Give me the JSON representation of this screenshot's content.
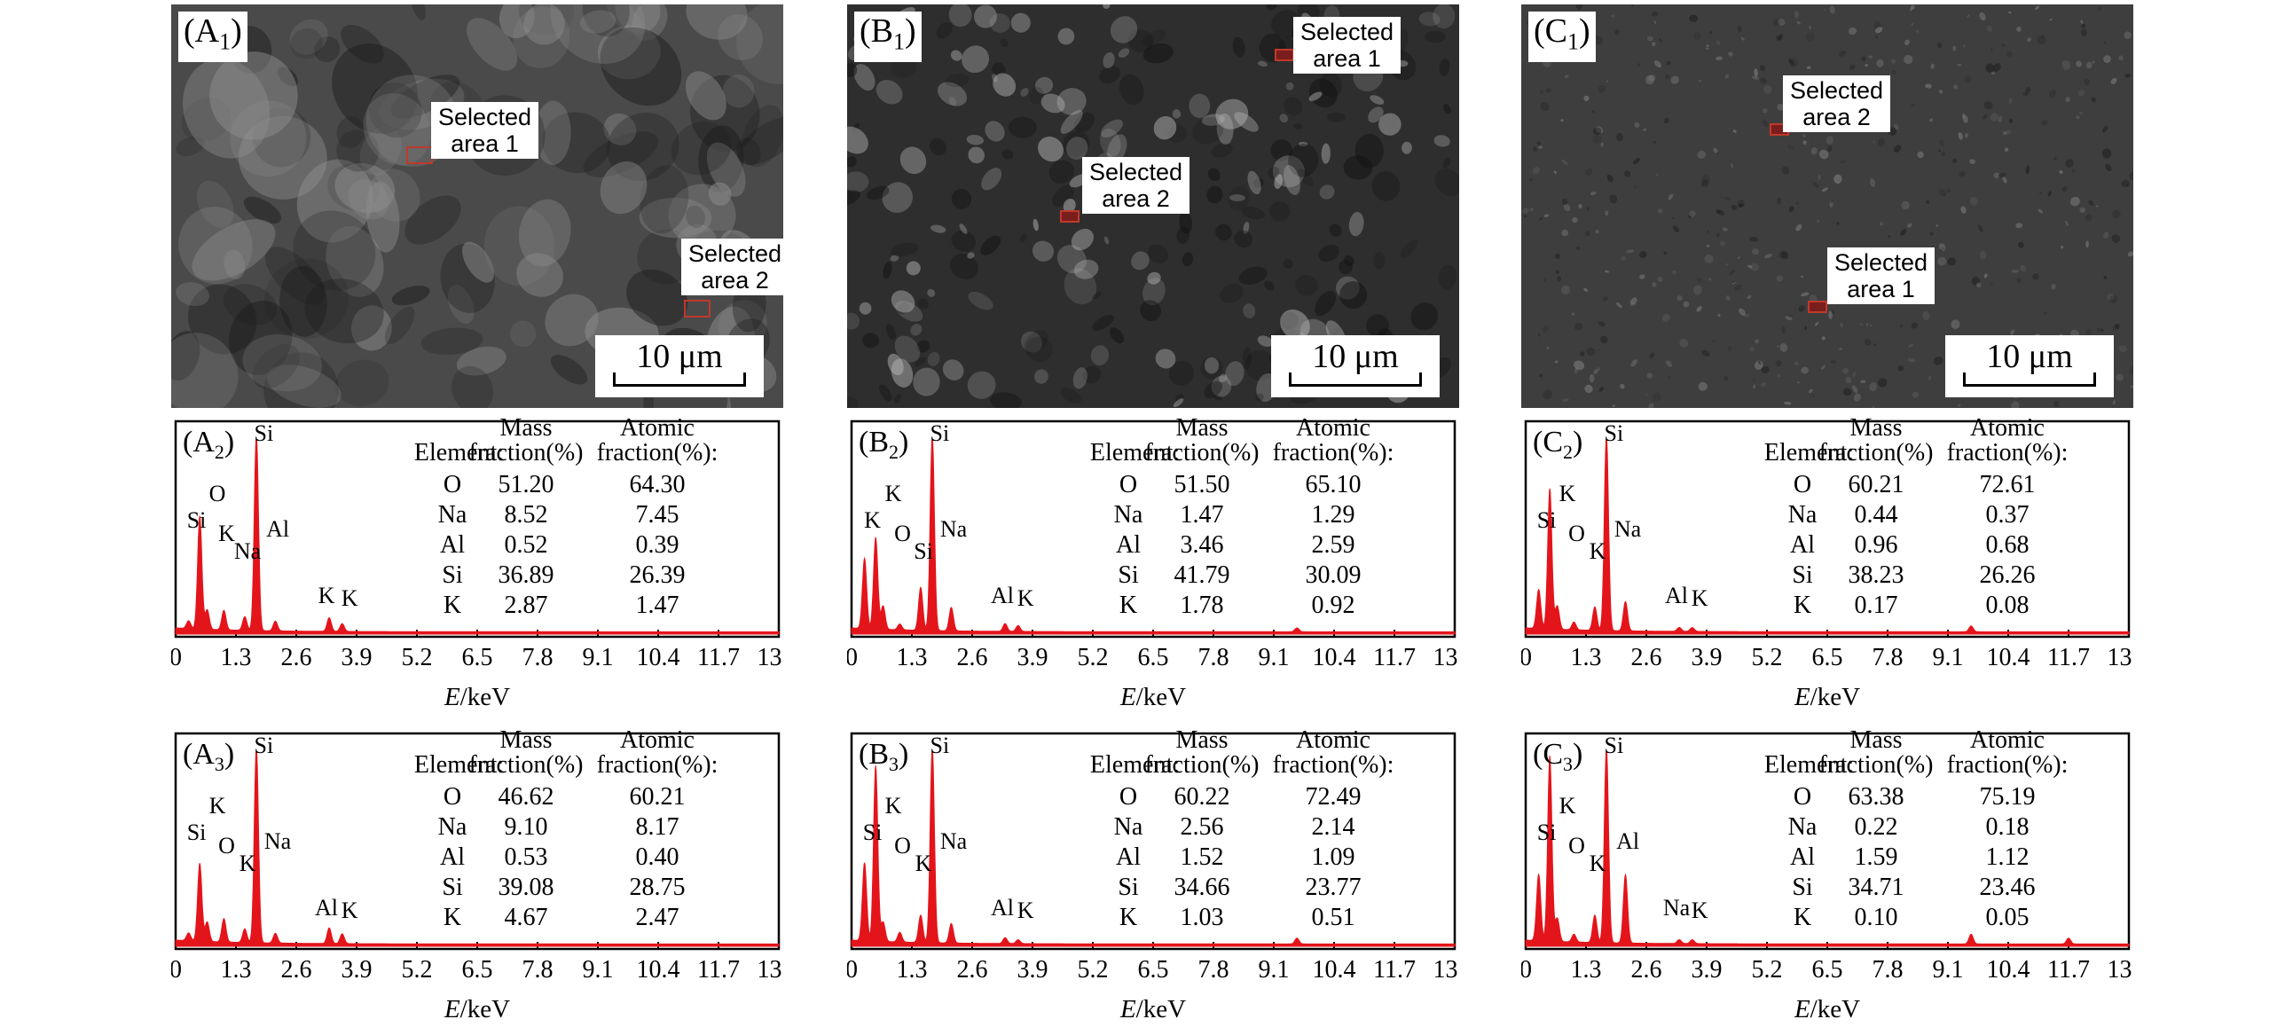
{
  "units": {
    "scale_bar": "10 μm",
    "x_axis_label": "E/keV"
  },
  "x_ticks": [
    "0",
    "1.3",
    "2.6",
    "3.9",
    "5.2",
    "6.5",
    "7.8",
    "9.1",
    "10.4",
    "11.7",
    "13.0"
  ],
  "columns": [
    {
      "sem": {
        "label": "(A1)",
        "label_sub": [
          "A",
          "1"
        ],
        "areas": [
          {
            "name": "area-1",
            "text": "Selected\narea 1"
          },
          {
            "name": "area-2",
            "text": "Selected\narea 2"
          }
        ],
        "scale_bar": "10 μm"
      },
      "spectra": [
        {
          "label": [
            "A",
            "2"
          ],
          "table": {
            "headers": [
              "Element:",
              "Mass fraction(%)",
              "Atomic fraction(%):"
            ],
            "rows": [
              [
                "O",
                "51.20",
                "64.30"
              ],
              [
                "Na",
                "8.52",
                "7.45"
              ],
              [
                "Al",
                "0.52",
                "0.39"
              ],
              [
                "Si",
                "36.89",
                "26.39"
              ],
              [
                "K",
                "2.87",
                "1.47"
              ]
            ]
          },
          "peaks": [
            {
              "e": 0.28,
              "h": 0.04
            },
            {
              "e": 0.52,
              "h": 0.58,
              "label": "O"
            },
            {
              "e": 0.68,
              "h": 0.1
            },
            {
              "e": 1.04,
              "h": 0.1,
              "label": "Na"
            },
            {
              "e": 1.49,
              "h": 0.07,
              "label": "Al"
            },
            {
              "e": 1.74,
              "h": 1.0,
              "label": "Si"
            },
            {
              "e": 2.15,
              "h": 0.05
            },
            {
              "e": 3.31,
              "h": 0.07
            },
            {
              "e": 3.59,
              "h": 0.04
            }
          ],
          "peak_labels": [
            "Si",
            "K",
            "Na",
            "Al",
            "K",
            "K",
            "O",
            "Si"
          ]
        },
        {
          "label": [
            "A",
            "3"
          ],
          "table": {
            "headers": [
              "Element:",
              "Mass fraction(%)",
              "Atomic fraction(%):"
            ],
            "rows": [
              [
                "O",
                "46.62",
                "60.21"
              ],
              [
                "Na",
                "9.10",
                "8.17"
              ],
              [
                "Al",
                "0.53",
                "0.40"
              ],
              [
                "Si",
                "39.08",
                "28.75"
              ],
              [
                "K",
                "4.67",
                "2.47"
              ]
            ]
          },
          "peaks": [
            {
              "e": 0.28,
              "h": 0.04
            },
            {
              "e": 0.52,
              "h": 0.4,
              "label": "O"
            },
            {
              "e": 0.68,
              "h": 0.1
            },
            {
              "e": 1.04,
              "h": 0.12,
              "label": "Na"
            },
            {
              "e": 1.49,
              "h": 0.07,
              "label": "Al"
            },
            {
              "e": 1.74,
              "h": 1.0,
              "label": "Si"
            },
            {
              "e": 2.15,
              "h": 0.05
            },
            {
              "e": 3.31,
              "h": 0.08
            },
            {
              "e": 3.59,
              "h": 0.05
            }
          ],
          "peak_labels": [
            "Si",
            "O",
            "K",
            "Na",
            "Al",
            "K",
            "K",
            "Si"
          ]
        }
      ]
    },
    {
      "sem": {
        "label": "(B1)",
        "label_sub": [
          "B",
          "1"
        ],
        "areas": [
          {
            "name": "area-1",
            "text": "Selected\narea 1"
          },
          {
            "name": "area-2",
            "text": "Selected\narea 2"
          }
        ],
        "scale_bar": "10 μm"
      },
      "spectra": [
        {
          "label": [
            "B",
            "2"
          ],
          "table": {
            "headers": [
              "Element:",
              "Mass fraction(%)",
              "Atomic fraction(%):"
            ],
            "rows": [
              [
                "O",
                "51.50",
                "65.10"
              ],
              [
                "Na",
                "1.47",
                "1.29"
              ],
              [
                "Al",
                "3.46",
                "2.59"
              ],
              [
                "Si",
                "41.79",
                "30.09"
              ],
              [
                "K",
                "1.78",
                "0.92"
              ]
            ]
          },
          "peaks": [
            {
              "e": 0.28,
              "h": 0.36
            },
            {
              "e": 0.52,
              "h": 0.47,
              "label": "O"
            },
            {
              "e": 0.68,
              "h": 0.12
            },
            {
              "e": 1.04,
              "h": 0.03,
              "label": "Na"
            },
            {
              "e": 1.49,
              "h": 0.22,
              "label": "Al"
            },
            {
              "e": 1.74,
              "h": 1.0,
              "label": "Si"
            },
            {
              "e": 2.15,
              "h": 0.12
            },
            {
              "e": 3.31,
              "h": 0.04
            },
            {
              "e": 3.59,
              "h": 0.03
            },
            {
              "e": 9.6,
              "h": 0.02
            }
          ],
          "peak_labels": [
            "K",
            "O",
            "Si",
            "Na",
            "Al",
            "K",
            "K",
            "Si"
          ]
        },
        {
          "label": [
            "B",
            "3"
          ],
          "table": {
            "headers": [
              "Element:",
              "Mass fraction(%)",
              "Atomic fraction(%):"
            ],
            "rows": [
              [
                "O",
                "60.22",
                "72.49"
              ],
              [
                "Na",
                "2.56",
                "2.14"
              ],
              [
                "Al",
                "1.52",
                "1.09"
              ],
              [
                "Si",
                "34.66",
                "23.77"
              ],
              [
                "K",
                "1.03",
                "0.51"
              ]
            ]
          },
          "peaks": [
            {
              "e": 0.28,
              "h": 0.4
            },
            {
              "e": 0.52,
              "h": 0.9,
              "label": "O"
            },
            {
              "e": 0.68,
              "h": 0.1
            },
            {
              "e": 1.04,
              "h": 0.05,
              "label": "Na"
            },
            {
              "e": 1.49,
              "h": 0.14,
              "label": "Al"
            },
            {
              "e": 1.74,
              "h": 1.0,
              "label": "Si"
            },
            {
              "e": 2.15,
              "h": 0.1
            },
            {
              "e": 3.31,
              "h": 0.03
            },
            {
              "e": 3.59,
              "h": 0.02
            },
            {
              "e": 9.6,
              "h": 0.03
            }
          ],
          "peak_labels": [
            "Si",
            "O",
            "K",
            "Na",
            "Al",
            "K",
            "K",
            "Si"
          ]
        }
      ]
    },
    {
      "sem": {
        "label": "(C1)",
        "label_sub": [
          "C",
          "1"
        ],
        "areas": [
          {
            "name": "area-2",
            "text": "Selected\narea 2"
          },
          {
            "name": "area-1",
            "text": "Selected\narea 1"
          }
        ],
        "scale_bar": "10 μm"
      },
      "spectra": [
        {
          "label": [
            "C",
            "2"
          ],
          "table": {
            "headers": [
              "Element:",
              "Mass fraction(%)",
              "Atomic fraction(%):"
            ],
            "rows": [
              [
                "O",
                "60.21",
                "72.61"
              ],
              [
                "Na",
                "0.44",
                "0.37"
              ],
              [
                "Al",
                "0.96",
                "0.68"
              ],
              [
                "Si",
                "38.23",
                "26.26"
              ],
              [
                "K",
                "0.17",
                "0.08"
              ]
            ]
          },
          "peaks": [
            {
              "e": 0.28,
              "h": 0.2
            },
            {
              "e": 0.52,
              "h": 0.72,
              "label": "O"
            },
            {
              "e": 0.68,
              "h": 0.12
            },
            {
              "e": 1.04,
              "h": 0.04,
              "label": "Na"
            },
            {
              "e": 1.49,
              "h": 0.12,
              "label": "Al"
            },
            {
              "e": 1.74,
              "h": 1.0,
              "label": "Si"
            },
            {
              "e": 2.15,
              "h": 0.15
            },
            {
              "e": 3.31,
              "h": 0.02
            },
            {
              "e": 3.59,
              "h": 0.02
            },
            {
              "e": 9.6,
              "h": 0.03
            }
          ],
          "peak_labels": [
            "Si",
            "O",
            "K",
            "Na",
            "Al",
            "K",
            "K",
            "Si"
          ]
        },
        {
          "label": [
            "C",
            "3"
          ],
          "table": {
            "headers": [
              "Element:",
              "Mass fraction(%)",
              "Atomic fraction(%):"
            ],
            "rows": [
              [
                "O",
                "63.38",
                "75.19"
              ],
              [
                "Na",
                "0.22",
                "0.18"
              ],
              [
                "Al",
                "1.59",
                "1.12"
              ],
              [
                "Si",
                "34.71",
                "23.46"
              ],
              [
                "K",
                "0.10",
                "0.05"
              ]
            ]
          },
          "peaks": [
            {
              "e": 0.28,
              "h": 0.34
            },
            {
              "e": 0.52,
              "h": 0.95,
              "label": "O"
            },
            {
              "e": 0.68,
              "h": 0.12
            },
            {
              "e": 1.04,
              "h": 0.04,
              "label": "Na"
            },
            {
              "e": 1.49,
              "h": 0.14,
              "label": "Al"
            },
            {
              "e": 1.74,
              "h": 1.0,
              "label": "Si"
            },
            {
              "e": 2.15,
              "h": 0.35
            },
            {
              "e": 3.31,
              "h": 0.02
            },
            {
              "e": 3.59,
              "h": 0.02
            },
            {
              "e": 9.6,
              "h": 0.05
            },
            {
              "e": 11.7,
              "h": 0.03
            }
          ],
          "peak_labels": [
            "Si",
            "O",
            "K",
            "Al",
            "Na",
            "K",
            "K",
            "Si"
          ]
        }
      ]
    }
  ]
}
